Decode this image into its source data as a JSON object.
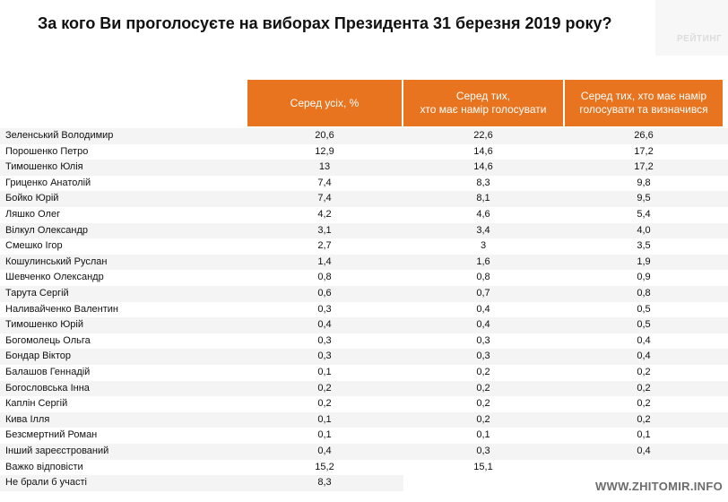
{
  "title": "За кого Ви проголосуєте на виборах Президента 31 березня 2019 року?",
  "brand": "РЕЙТИНГ",
  "watermark": "WWW.ZHITOMIR.INFO",
  "header_color": "#e8741f",
  "chart_data": {
    "type": "table",
    "columns": [
      "Серед усіх, %",
      "Серед тих,\nхто має намір голосувати",
      "Серед тих, хто має намір\nголосувати та визначився"
    ],
    "rows": [
      {
        "name": "Зеленський Володимир",
        "values": [
          "20,6",
          "22,6",
          "26,6"
        ]
      },
      {
        "name": "Порошенко Петро",
        "values": [
          "12,9",
          "14,6",
          "17,2"
        ]
      },
      {
        "name": "Тимошенко Юлія",
        "values": [
          "13",
          "14,6",
          "17,2"
        ]
      },
      {
        "name": "Гриценко Анатолій",
        "values": [
          "7,4",
          "8,3",
          "9,8"
        ]
      },
      {
        "name": "Бойко Юрій",
        "values": [
          "7,4",
          "8,1",
          "9,5"
        ]
      },
      {
        "name": "Ляшко Олег",
        "values": [
          "4,2",
          "4,6",
          "5,4"
        ]
      },
      {
        "name": "Вілкул Олександр",
        "values": [
          "3,1",
          "3,4",
          "4,0"
        ]
      },
      {
        "name": "Смешко Ігор",
        "values": [
          "2,7",
          "3",
          "3,5"
        ]
      },
      {
        "name": "Кошулинський Руслан",
        "values": [
          "1,4",
          "1,6",
          "1,9"
        ]
      },
      {
        "name": "Шевченко Олександр",
        "values": [
          "0,8",
          "0,8",
          "0,9"
        ]
      },
      {
        "name": "Тарута Сергій",
        "values": [
          "0,6",
          "0,7",
          "0,8"
        ]
      },
      {
        "name": "Наливайченко Валентин",
        "values": [
          "0,3",
          "0,4",
          "0,5"
        ]
      },
      {
        "name": "Тимошенко Юрій",
        "values": [
          "0,4",
          "0,4",
          "0,5"
        ]
      },
      {
        "name": "Богомолець Ольга",
        "values": [
          "0,3",
          "0,3",
          "0,4"
        ]
      },
      {
        "name": "Бондар Віктор",
        "values": [
          "0,3",
          "0,3",
          "0,4"
        ]
      },
      {
        "name": "Балашов Геннадій",
        "values": [
          "0,1",
          "0,2",
          "0,2"
        ]
      },
      {
        "name": "Богословська Інна",
        "values": [
          "0,2",
          "0,2",
          "0,2"
        ]
      },
      {
        "name": "Каплін Сергій",
        "values": [
          "0,2",
          "0,2",
          "0,2"
        ]
      },
      {
        "name": "Кива Ілля",
        "values": [
          "0,1",
          "0,2",
          "0,2"
        ]
      },
      {
        "name": "Безсмертний Роман",
        "values": [
          "0,1",
          "0,1",
          "0,1"
        ]
      },
      {
        "name": "Інший зареєстрований",
        "values": [
          "0,4",
          "0,3",
          "0,4"
        ]
      },
      {
        "name": "Важко відповісти",
        "values": [
          "15,2",
          "15,1",
          ""
        ]
      },
      {
        "name": "Не брали б участі",
        "values": [
          "8,3",
          "",
          ""
        ]
      }
    ]
  }
}
